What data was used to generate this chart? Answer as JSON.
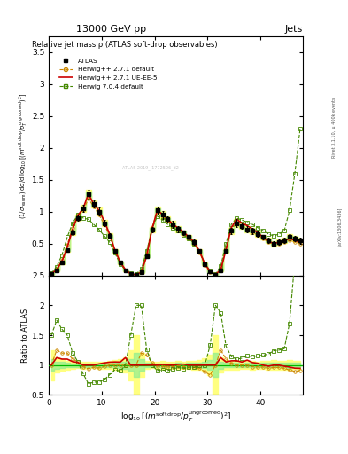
{
  "title_top": "13000 GeV pp",
  "title_right": "Jets",
  "main_title": "Relative jet mass ρ (ATLAS soft-drop observables)",
  "ylabel_main": "(1/σ_{resum}) dσ/d log_{10}[(m^{soft drop}/p_T^{ungroomed})^2]",
  "ylabel_ratio": "Ratio to ATLAS",
  "right_label1": "Rivet 3.1.10, ≥ 400k events",
  "right_label2": "[arXiv:1306.3436]",
  "watermark": "ATLAS 2019_I1772506_d2",
  "x_min": 0,
  "x_max": 48,
  "y_main_min": 0,
  "y_main_max": 3.75,
  "y_ratio_min": 0.5,
  "y_ratio_max": 2.5,
  "atlas_x": [
    0.5,
    1.5,
    2.5,
    3.5,
    4.5,
    5.5,
    6.5,
    7.5,
    8.5,
    9.5,
    10.5,
    11.5,
    12.5,
    13.5,
    14.5,
    15.5,
    16.5,
    17.5,
    18.5,
    19.5,
    20.5,
    21.5,
    22.5,
    23.5,
    24.5,
    25.5,
    26.5,
    27.5,
    28.5,
    29.5,
    30.5,
    31.5,
    32.5,
    33.5,
    34.5,
    35.5,
    36.5,
    37.5,
    38.5,
    39.5,
    40.5,
    41.5,
    42.5,
    43.5,
    44.5,
    45.5,
    46.5,
    47.5
  ],
  "atlas_y": [
    0.02,
    0.08,
    0.2,
    0.4,
    0.68,
    0.9,
    1.05,
    1.28,
    1.12,
    1.0,
    0.82,
    0.62,
    0.38,
    0.2,
    0.08,
    0.02,
    0.01,
    0.05,
    0.3,
    0.72,
    1.02,
    0.95,
    0.88,
    0.8,
    0.73,
    0.67,
    0.6,
    0.52,
    0.38,
    0.18,
    0.06,
    0.01,
    0.08,
    0.38,
    0.7,
    0.82,
    0.78,
    0.72,
    0.7,
    0.65,
    0.6,
    0.55,
    0.5,
    0.52,
    0.55,
    0.6,
    0.58,
    0.55
  ],
  "atlas_yerr": [
    0.005,
    0.01,
    0.02,
    0.03,
    0.04,
    0.05,
    0.06,
    0.07,
    0.06,
    0.06,
    0.05,
    0.04,
    0.03,
    0.02,
    0.01,
    0.005,
    0.005,
    0.01,
    0.02,
    0.04,
    0.06,
    0.06,
    0.05,
    0.05,
    0.05,
    0.04,
    0.04,
    0.04,
    0.03,
    0.02,
    0.01,
    0.005,
    0.01,
    0.03,
    0.05,
    0.06,
    0.05,
    0.05,
    0.05,
    0.04,
    0.04,
    0.04,
    0.04,
    0.04,
    0.04,
    0.05,
    0.04,
    0.04
  ],
  "atlas_stat_err": [
    0.002,
    0.005,
    0.01,
    0.015,
    0.02,
    0.025,
    0.03,
    0.035,
    0.03,
    0.03,
    0.025,
    0.02,
    0.015,
    0.01,
    0.005,
    0.002,
    0.002,
    0.005,
    0.01,
    0.02,
    0.03,
    0.03,
    0.025,
    0.025,
    0.025,
    0.02,
    0.02,
    0.02,
    0.015,
    0.01,
    0.005,
    0.002,
    0.005,
    0.015,
    0.025,
    0.03,
    0.025,
    0.025,
    0.025,
    0.02,
    0.02,
    0.02,
    0.02,
    0.02,
    0.02,
    0.025,
    0.02,
    0.02
  ],
  "hw271_y": [
    0.02,
    0.1,
    0.24,
    0.48,
    0.75,
    0.95,
    1.02,
    1.2,
    1.08,
    0.95,
    0.8,
    0.62,
    0.38,
    0.2,
    0.08,
    0.02,
    0.01,
    0.06,
    0.35,
    0.75,
    1.0,
    0.93,
    0.85,
    0.78,
    0.72,
    0.65,
    0.58,
    0.5,
    0.36,
    0.16,
    0.05,
    0.01,
    0.1,
    0.42,
    0.72,
    0.82,
    0.78,
    0.72,
    0.68,
    0.63,
    0.58,
    0.52,
    0.48,
    0.5,
    0.52,
    0.55,
    0.52,
    0.5
  ],
  "hw271ue_y": [
    0.02,
    0.09,
    0.22,
    0.44,
    0.72,
    0.94,
    1.05,
    1.28,
    1.12,
    1.02,
    0.85,
    0.65,
    0.4,
    0.21,
    0.09,
    0.02,
    0.01,
    0.05,
    0.3,
    0.72,
    1.02,
    0.96,
    0.88,
    0.8,
    0.74,
    0.68,
    0.6,
    0.52,
    0.38,
    0.18,
    0.06,
    0.01,
    0.09,
    0.4,
    0.75,
    0.88,
    0.82,
    0.78,
    0.73,
    0.67,
    0.6,
    0.54,
    0.5,
    0.52,
    0.54,
    0.58,
    0.55,
    0.52
  ],
  "hw704_y": [
    0.03,
    0.14,
    0.32,
    0.6,
    0.82,
    0.95,
    0.9,
    0.88,
    0.8,
    0.72,
    0.62,
    0.52,
    0.35,
    0.18,
    0.08,
    0.03,
    0.02,
    0.1,
    0.38,
    0.72,
    0.93,
    0.87,
    0.8,
    0.75,
    0.7,
    0.63,
    0.58,
    0.5,
    0.38,
    0.18,
    0.08,
    0.02,
    0.15,
    0.5,
    0.8,
    0.9,
    0.87,
    0.83,
    0.8,
    0.75,
    0.7,
    0.65,
    0.62,
    0.65,
    0.7,
    1.02,
    1.6,
    2.3
  ],
  "colors": {
    "atlas": "#000000",
    "hw271": "#cc8800",
    "hw271ue": "#cc0000",
    "hw704": "#448800",
    "band_yellow": "#ffff80",
    "band_green": "#90ee90",
    "ratio_line": "#00bb00"
  }
}
